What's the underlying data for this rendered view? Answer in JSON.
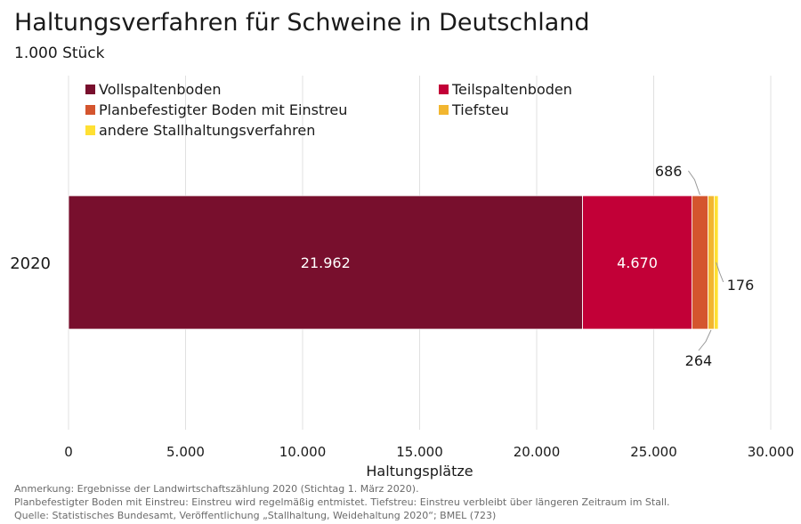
{
  "header": {
    "title": "Haltungsverfahren für Schweine in Deutschland",
    "subtitle": "1.000 Stück"
  },
  "footnotes": [
    "Anmerkung: Ergebnisse der Landwirtschaftszählung 2020 (Stichtag 1. März 2020).",
    "Planbefestigter Boden mit Einstreu: Einstreu wird regelmäßig entmistet. Tiefstreu: Einstreu verbleibt über längeren Zeitraum im Stall.",
    "Quelle: Statistisches Bundesamt, Veröffentlichung „Stallhaltung, Weidehaltung 2020“; BMEL (723)"
  ],
  "chart_data": {
    "type": "bar",
    "orientation": "horizontal",
    "stacked": true,
    "categories": [
      "2020"
    ],
    "xlabel": "Haltungsplätze",
    "ylabel": "",
    "xlim": [
      0,
      30000
    ],
    "xticks": [
      0,
      5000,
      10000,
      15000,
      20000,
      25000,
      30000
    ],
    "xtick_labels": [
      "0",
      "5.000",
      "10.000",
      "15.000",
      "20.000",
      "25.000",
      "30.000"
    ],
    "grid": true,
    "legend_position": "top",
    "series": [
      {
        "name": "Vollspaltenboden",
        "values": [
          21962
        ],
        "label": "21.962",
        "color": "#780f2d",
        "label_color": "#ffffff"
      },
      {
        "name": "Teilspaltenboden",
        "values": [
          4670
        ],
        "label": "4.670",
        "color": "#c20037",
        "label_color": "#ffffff"
      },
      {
        "name": "Planbefestigter Boden mit Einstreu",
        "values": [
          686
        ],
        "label": "686",
        "color": "#d4552e",
        "label_color": "#1a1a1a"
      },
      {
        "name": "Tiefsteu",
        "values": [
          264
        ],
        "label": "264",
        "color": "#f2b630",
        "label_color": "#1a1a1a"
      },
      {
        "name": "andere Stallhaltungsverfahren",
        "values": [
          176
        ],
        "label": "176",
        "color": "#ffe033",
        "label_color": "#1a1a1a"
      }
    ]
  }
}
